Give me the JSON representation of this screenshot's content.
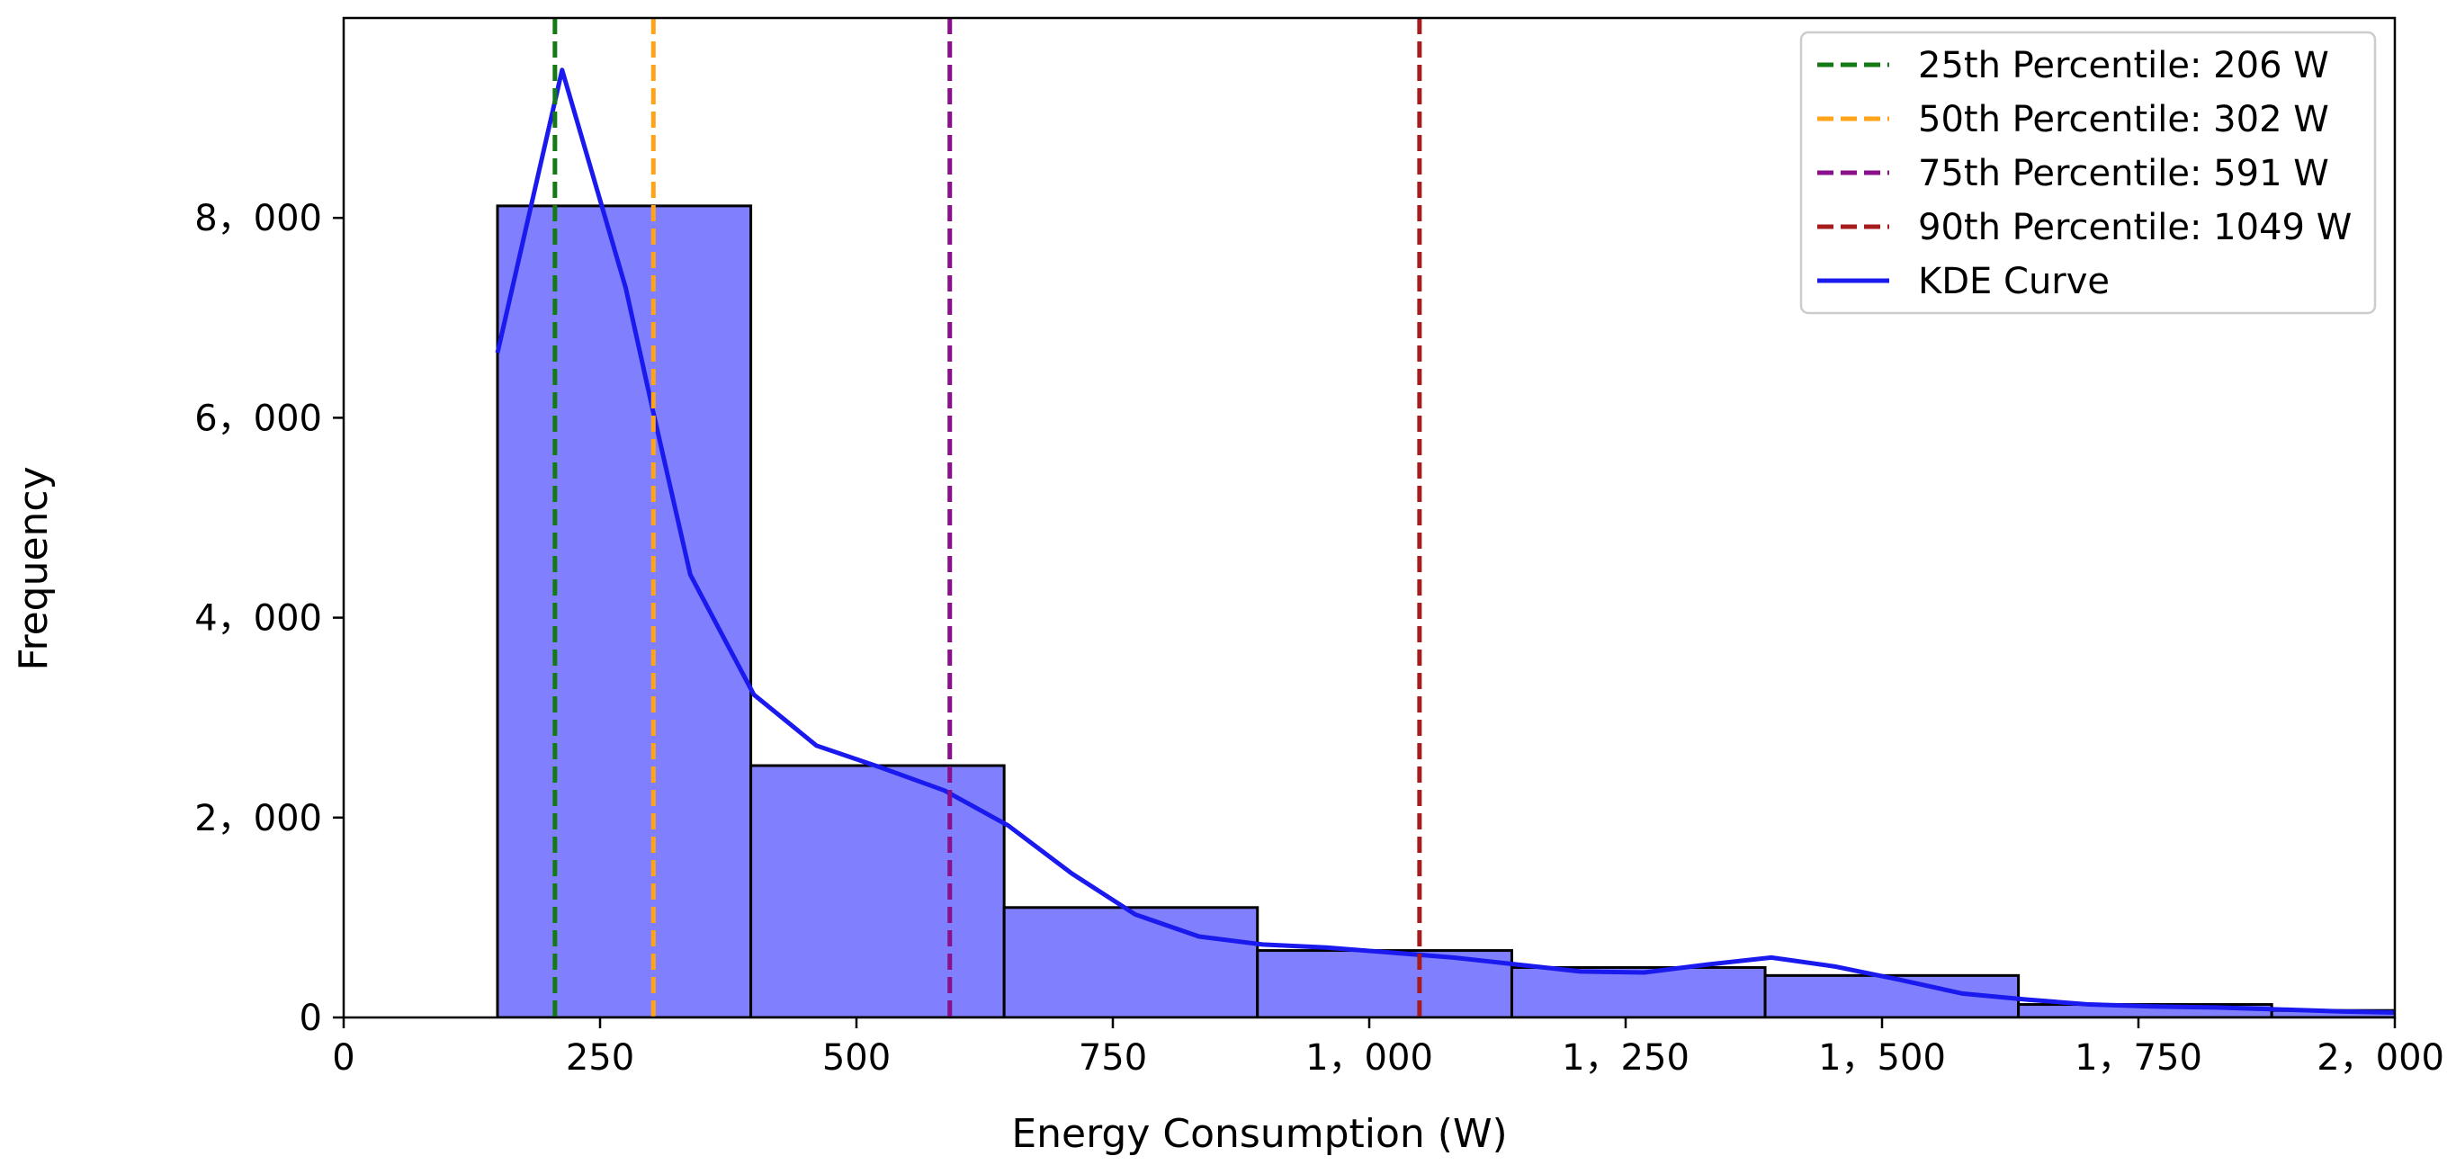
{
  "chart_data": {
    "type": "bar",
    "title": "",
    "xlabel": "Energy Consumption (W)",
    "ylabel": "Frequency",
    "xlim": [
      0,
      2000
    ],
    "ylim": [
      0,
      10000
    ],
    "grid": false,
    "legend_position": "top-right",
    "x_ticks": [
      0,
      250,
      500,
      750,
      1000,
      1250,
      1500,
      1750,
      2000
    ],
    "x_tick_labels": [
      "0",
      "250",
      "500",
      "750",
      "1，000",
      "1，250",
      "1，500",
      "1，750",
      "2，000"
    ],
    "y_ticks": [
      0,
      2000,
      4000,
      6000,
      8000
    ],
    "y_tick_labels": [
      "0",
      "2，000",
      "4，000",
      "6，000",
      "8，000"
    ],
    "bins": [
      {
        "start": 150,
        "end": 397,
        "count": 8120
      },
      {
        "start": 397,
        "end": 644,
        "count": 2520
      },
      {
        "start": 644,
        "end": 891,
        "count": 1100
      },
      {
        "start": 891,
        "end": 1139,
        "count": 670
      },
      {
        "start": 1139,
        "end": 1386,
        "count": 500
      },
      {
        "start": 1386,
        "end": 1633,
        "count": 420
      },
      {
        "start": 1633,
        "end": 1880,
        "count": 130
      },
      {
        "start": 1880,
        "end": 2127,
        "count": 70
      }
    ],
    "kde": {
      "name": "KDE Curve",
      "color": "#1a1aee",
      "x": [
        150,
        213,
        275,
        302,
        338,
        400,
        461,
        524,
        586,
        648,
        710,
        772,
        834,
        896,
        958,
        1020,
        1082,
        1144,
        1206,
        1268,
        1330,
        1392,
        1454,
        1516,
        1578,
        1640,
        1702,
        1764,
        1826,
        1888,
        1950,
        2000
      ],
      "y": [
        6650,
        9480,
        7300,
        6050,
        4430,
        3230,
        2720,
        2500,
        2270,
        1920,
        1440,
        1030,
        810,
        730,
        700,
        650,
        600,
        530,
        460,
        450,
        530,
        600,
        510,
        380,
        240,
        180,
        130,
        110,
        100,
        80,
        60,
        50
      ]
    },
    "percentiles": [
      {
        "label": "25th Percentile: 206 W",
        "value": 206,
        "color": "#157a15"
      },
      {
        "label": "50th Percentile: 302 W",
        "value": 302,
        "color": "#ffa31a"
      },
      {
        "label": "75th Percentile: 591 W",
        "value": 591,
        "color": "#8a0f8a"
      },
      {
        "label": "90th Percentile: 1049 W",
        "value": 1049,
        "color": "#a61c1c"
      }
    ],
    "bar_fill": "#8080ff",
    "bar_edge": "#000000"
  }
}
